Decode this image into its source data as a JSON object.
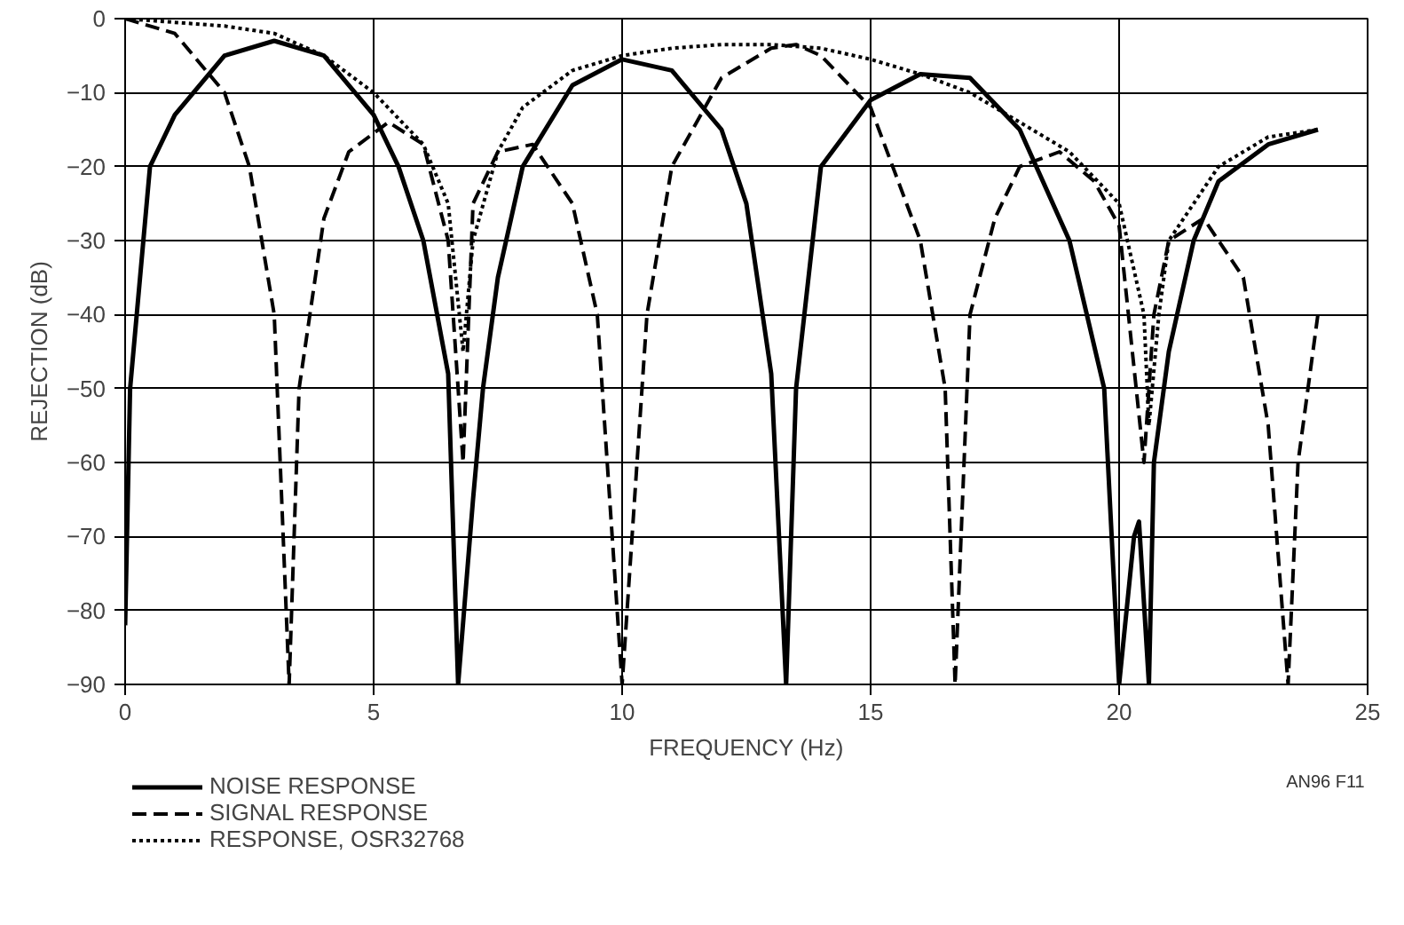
{
  "chart_data": {
    "type": "line",
    "xlabel": "FREQUENCY (Hz)",
    "ylabel": "REJECTION (dB)",
    "xlim": [
      0,
      25
    ],
    "xticks": [
      0,
      5,
      10,
      15,
      20,
      25
    ],
    "ylim": [
      -90,
      0
    ],
    "yticks": [
      -90,
      -80,
      -70,
      -60,
      -50,
      -40,
      -30,
      -20,
      -10,
      0
    ],
    "grid": true,
    "legend": "bottom left",
    "annotations": [
      "AN96 F11"
    ],
    "series": [
      {
        "name": "NOISE RESPONSE",
        "color": "#000000",
        "line_style": "solid",
        "x": [
          0,
          0.1,
          0.5,
          1,
          2,
          3,
          4,
          5,
          5.5,
          6,
          6.5,
          6.7,
          7.0,
          7.2,
          7.5,
          8,
          9,
          10,
          11,
          12,
          12.5,
          13,
          13.3,
          13.5,
          14,
          15,
          16,
          17,
          18,
          19,
          19.7,
          20,
          20.3,
          20.4,
          20.6,
          20.7,
          21,
          21.5,
          22,
          23,
          24
        ],
        "values": [
          -82,
          -50,
          -20,
          -13,
          -5,
          -3,
          -5,
          -13,
          -20,
          -30,
          -48,
          -90,
          -65,
          -50,
          -35,
          -20,
          -9,
          -5.5,
          -7,
          -15,
          -25,
          -48,
          -90,
          -50,
          -20,
          -11,
          -7.5,
          -8,
          -15,
          -30,
          -50,
          -90,
          -70,
          -68,
          -90,
          -60,
          -45,
          -30,
          -22,
          -17,
          -15
        ]
      },
      {
        "name": "SIGNAL RESPONSE",
        "color": "#000000",
        "line_style": "dashed",
        "x": [
          0,
          1,
          2,
          2.5,
          3,
          3.3,
          3.5,
          4,
          4.5,
          5.3,
          6,
          6.5,
          6.8,
          7.0,
          7.5,
          8.2,
          9,
          9.5,
          10,
          10.5,
          11,
          12,
          13,
          13.5,
          14,
          15,
          16,
          16.5,
          16.7,
          17,
          17.5,
          18,
          18.8,
          19.5,
          20,
          20.5,
          20.7,
          21,
          21.7,
          22.5,
          23,
          23.4,
          23.6,
          24
        ],
        "values": [
          0,
          -2,
          -10,
          -20,
          -40,
          -90,
          -50,
          -27,
          -18,
          -14,
          -17,
          -30,
          -60,
          -25,
          -18,
          -17,
          -25,
          -40,
          -90,
          -40,
          -20,
          -8,
          -4,
          -3.5,
          -5,
          -12,
          -30,
          -50,
          -90,
          -40,
          -27,
          -20,
          -18,
          -22,
          -28,
          -60,
          -40,
          -30,
          -27,
          -35,
          -55,
          -90,
          -60,
          -40
        ]
      },
      {
        "name": "RESPONSE, OSR32768",
        "color": "#000000",
        "line_style": "dotted",
        "x": [
          0,
          2,
          3,
          4,
          5,
          6,
          6.5,
          6.8,
          7.0,
          7.5,
          8,
          9,
          10,
          11,
          12,
          13,
          14,
          15,
          16,
          17,
          18,
          19,
          20,
          20.5,
          20.6,
          20.8,
          21,
          22,
          23,
          24
        ],
        "values": [
          0,
          -1,
          -2,
          -5,
          -10,
          -17,
          -25,
          -45,
          -30,
          -18,
          -12,
          -7,
          -5,
          -4,
          -3.5,
          -3.5,
          -4,
          -5.5,
          -7.5,
          -10,
          -14,
          -18,
          -25,
          -40,
          -55,
          -40,
          -30,
          -20,
          -16,
          -15
        ]
      }
    ]
  }
}
